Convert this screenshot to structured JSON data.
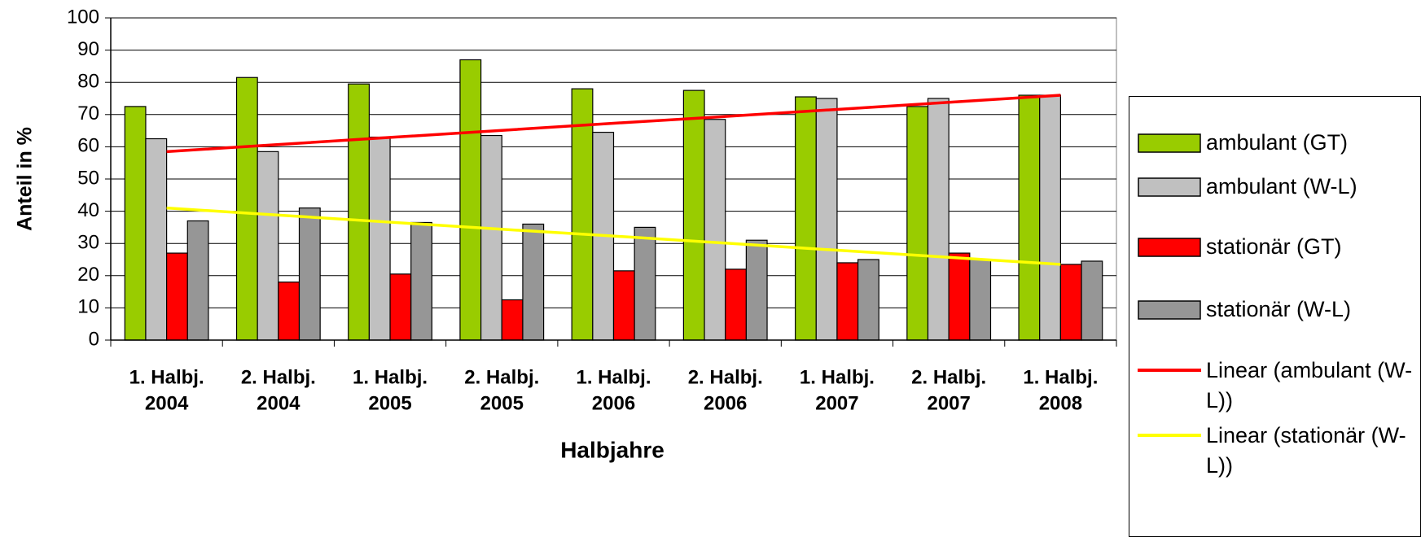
{
  "chart_data": {
    "type": "bar",
    "x_label": "Halbjahre",
    "y_label": "Anteil in %",
    "categories": [
      [
        "1. Halbj.",
        "2004"
      ],
      [
        "2. Halbj.",
        "2004"
      ],
      [
        "1. Halbj.",
        "2005"
      ],
      [
        "2. Halbj.",
        "2005"
      ],
      [
        "1. Halbj.",
        "2006"
      ],
      [
        "2. Halbj.",
        "2006"
      ],
      [
        "1. Halbj.",
        "2007"
      ],
      [
        "2. Halbj.",
        "2007"
      ],
      [
        "1. Halbj.",
        "2008"
      ]
    ],
    "series": [
      {
        "name": "ambulant (GT)",
        "color": "#99cc00",
        "values": [
          72.5,
          81.5,
          79.5,
          87,
          78,
          77.5,
          75.5,
          72.5,
          76
        ]
      },
      {
        "name": "ambulant (W-L)",
        "color": "#c0c0c0",
        "values": [
          62.5,
          58.5,
          63,
          63.5,
          64.5,
          68.5,
          75,
          75,
          76
        ]
      },
      {
        "name": "stationär (GT)",
        "color": "#ff0000",
        "values": [
          27,
          18,
          20.5,
          12.5,
          21.5,
          22,
          24,
          27,
          23.5
        ]
      },
      {
        "name": "stationär (W-L)",
        "color": "#969696",
        "values": [
          37,
          41,
          36.5,
          36,
          35,
          31,
          25,
          25,
          24.5
        ]
      },
      {
        "name": "Linear (ambulant (W-L))",
        "color": "#ff0000",
        "type": "line",
        "values": [
          58.5,
          60.7,
          62.9,
          65.1,
          67.3,
          69.4,
          71.6,
          73.8,
          76
        ]
      },
      {
        "name": "Linear (stationär (W-L))",
        "color": "#ffff00",
        "type": "line",
        "values": [
          41,
          38.8,
          36.6,
          34.4,
          32.3,
          30.1,
          27.9,
          25.7,
          23.5
        ]
      }
    ],
    "ylim": [
      0,
      100
    ],
    "yticks": [
      0,
      10,
      20,
      30,
      40,
      50,
      60,
      70,
      80,
      90,
      100
    ],
    "grid": true,
    "legend": "right"
  }
}
